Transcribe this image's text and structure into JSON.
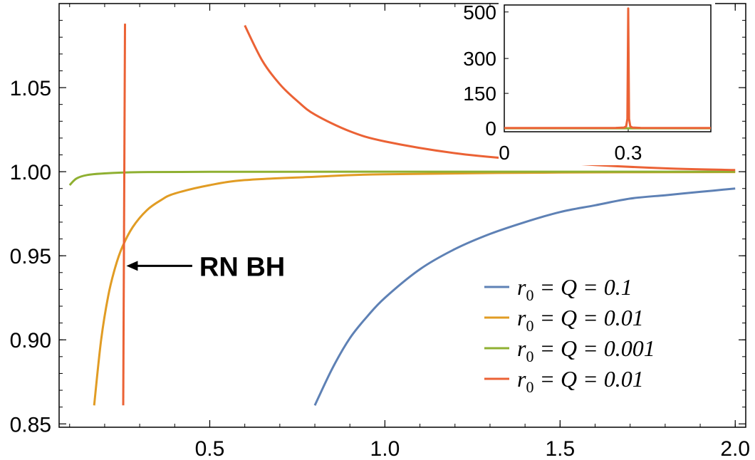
{
  "chart_data": [
    {
      "type": "line",
      "title": "",
      "xlabel": "",
      "ylabel": "",
      "xlim": [
        0.07,
        2.03
      ],
      "ylim": [
        0.848,
        1.1
      ],
      "x_ticks": [
        {
          "value": 0.5,
          "label": "0.5"
        },
        {
          "value": 1.0,
          "label": "1.0"
        },
        {
          "value": 1.5,
          "label": "1.5"
        },
        {
          "value": 2.0,
          "label": "2.0"
        }
      ],
      "y_ticks": [
        {
          "value": 0.85,
          "label": "0.85"
        },
        {
          "value": 0.9,
          "label": "0.90"
        },
        {
          "value": 0.95,
          "label": "0.95"
        },
        {
          "value": 1.0,
          "label": "1.00"
        },
        {
          "value": 1.05,
          "label": "1.05"
        }
      ],
      "legend_position": "bottom-right",
      "series": [
        {
          "name": "r0 = Q = 0.1",
          "legend": {
            "sym": "r",
            "sub": "0",
            "rest": " = Q = 0.1"
          },
          "color": "#5E81B5",
          "points": [
            [
              0.8,
              0.861
            ],
            [
              0.85,
              0.883
            ],
            [
              0.9,
              0.901
            ],
            [
              0.95,
              0.914
            ],
            [
              1.0,
              0.925
            ],
            [
              1.1,
              0.942
            ],
            [
              1.2,
              0.954
            ],
            [
              1.3,
              0.963
            ],
            [
              1.4,
              0.97
            ],
            [
              1.5,
              0.976
            ],
            [
              1.6,
              0.98
            ],
            [
              1.7,
              0.984
            ],
            [
              1.8,
              0.986
            ],
            [
              1.9,
              0.988
            ],
            [
              2.0,
              0.99
            ]
          ]
        },
        {
          "name": "r0 = Q = 0.01",
          "legend": {
            "sym": "r",
            "sub": "0",
            "rest": " = Q = 0.01"
          },
          "color": "#E19C24",
          "points": [
            [
              0.17,
              0.861
            ],
            [
              0.19,
              0.9
            ],
            [
              0.21,
              0.926
            ],
            [
              0.23,
              0.943
            ],
            [
              0.25,
              0.955
            ],
            [
              0.28,
              0.967
            ],
            [
              0.32,
              0.977
            ],
            [
              0.36,
              0.983
            ],
            [
              0.4,
              0.987
            ],
            [
              0.5,
              0.992
            ],
            [
              0.6,
              0.995
            ],
            [
              0.8,
              0.997
            ],
            [
              1.0,
              0.9985
            ],
            [
              1.5,
              0.9995
            ],
            [
              2.0,
              0.9998
            ]
          ]
        },
        {
          "name": "r0 = Q = 0.001",
          "legend": {
            "sym": "r",
            "sub": "0",
            "rest": " = Q = 0.001"
          },
          "color": "#8FB032",
          "points": [
            [
              0.1,
              0.992
            ],
            [
              0.12,
              0.996
            ],
            [
              0.15,
              0.998
            ],
            [
              0.2,
              0.999
            ],
            [
              0.3,
              0.9997
            ],
            [
              0.5,
              0.9999
            ],
            [
              1.0,
              1.0
            ],
            [
              2.0,
              1.0
            ]
          ]
        },
        {
          "name": "r0 = Q = 0.01",
          "legend": {
            "sym": "r",
            "sub": "0",
            "rest": " = Q = 0.01"
          },
          "color": "#EB6235",
          "segments": [
            [
              [
                0.253,
                0.861
              ],
              [
                0.258,
                1.088
              ]
            ],
            [
              [
                0.6,
                1.087
              ],
              [
                0.65,
                1.066
              ],
              [
                0.7,
                1.052
              ],
              [
                0.75,
                1.042
              ],
              [
                0.8,
                1.034
              ],
              [
                0.9,
                1.024
              ],
              [
                1.0,
                1.018
              ],
              [
                1.2,
                1.011
              ],
              [
                1.4,
                1.007
              ],
              [
                1.6,
                1.004
              ],
              [
                1.8,
                1.002
              ],
              [
                2.0,
                1.001
              ]
            ]
          ]
        }
      ],
      "annotations": [
        {
          "text": "RN BH",
          "arrow_from": [
            0.45,
            0.944
          ],
          "arrow_to": [
            0.262,
            0.944
          ]
        }
      ]
    },
    {
      "type": "line",
      "title": "",
      "xlabel": "",
      "ylabel": "",
      "xlim": [
        0.0,
        0.5
      ],
      "ylim": [
        -15,
        530
      ],
      "x_ticks": [
        {
          "value": 0.0,
          "label": "0"
        },
        {
          "value": 0.3,
          "label": "0.3"
        }
      ],
      "y_ticks": [
        {
          "value": 0,
          "label": "0"
        },
        {
          "value": 150,
          "label": "150"
        },
        {
          "value": 300,
          "label": "300"
        },
        {
          "value": 500,
          "label": "500"
        }
      ],
      "series": [
        {
          "color": "#8FB032",
          "points": [
            [
              0.0,
              0
            ],
            [
              0.5,
              0
            ]
          ]
        },
        {
          "color": "#EB6235",
          "points": [
            [
              0.0,
              1
            ],
            [
              0.27,
              1.5
            ],
            [
              0.29,
              3
            ],
            [
              0.295,
              8
            ],
            [
              0.298,
              40
            ],
            [
              0.3,
              515
            ],
            [
              0.302,
              40
            ],
            [
              0.305,
              8
            ],
            [
              0.31,
              3
            ],
            [
              0.33,
              1.5
            ],
            [
              0.5,
              1
            ]
          ]
        }
      ]
    }
  ]
}
